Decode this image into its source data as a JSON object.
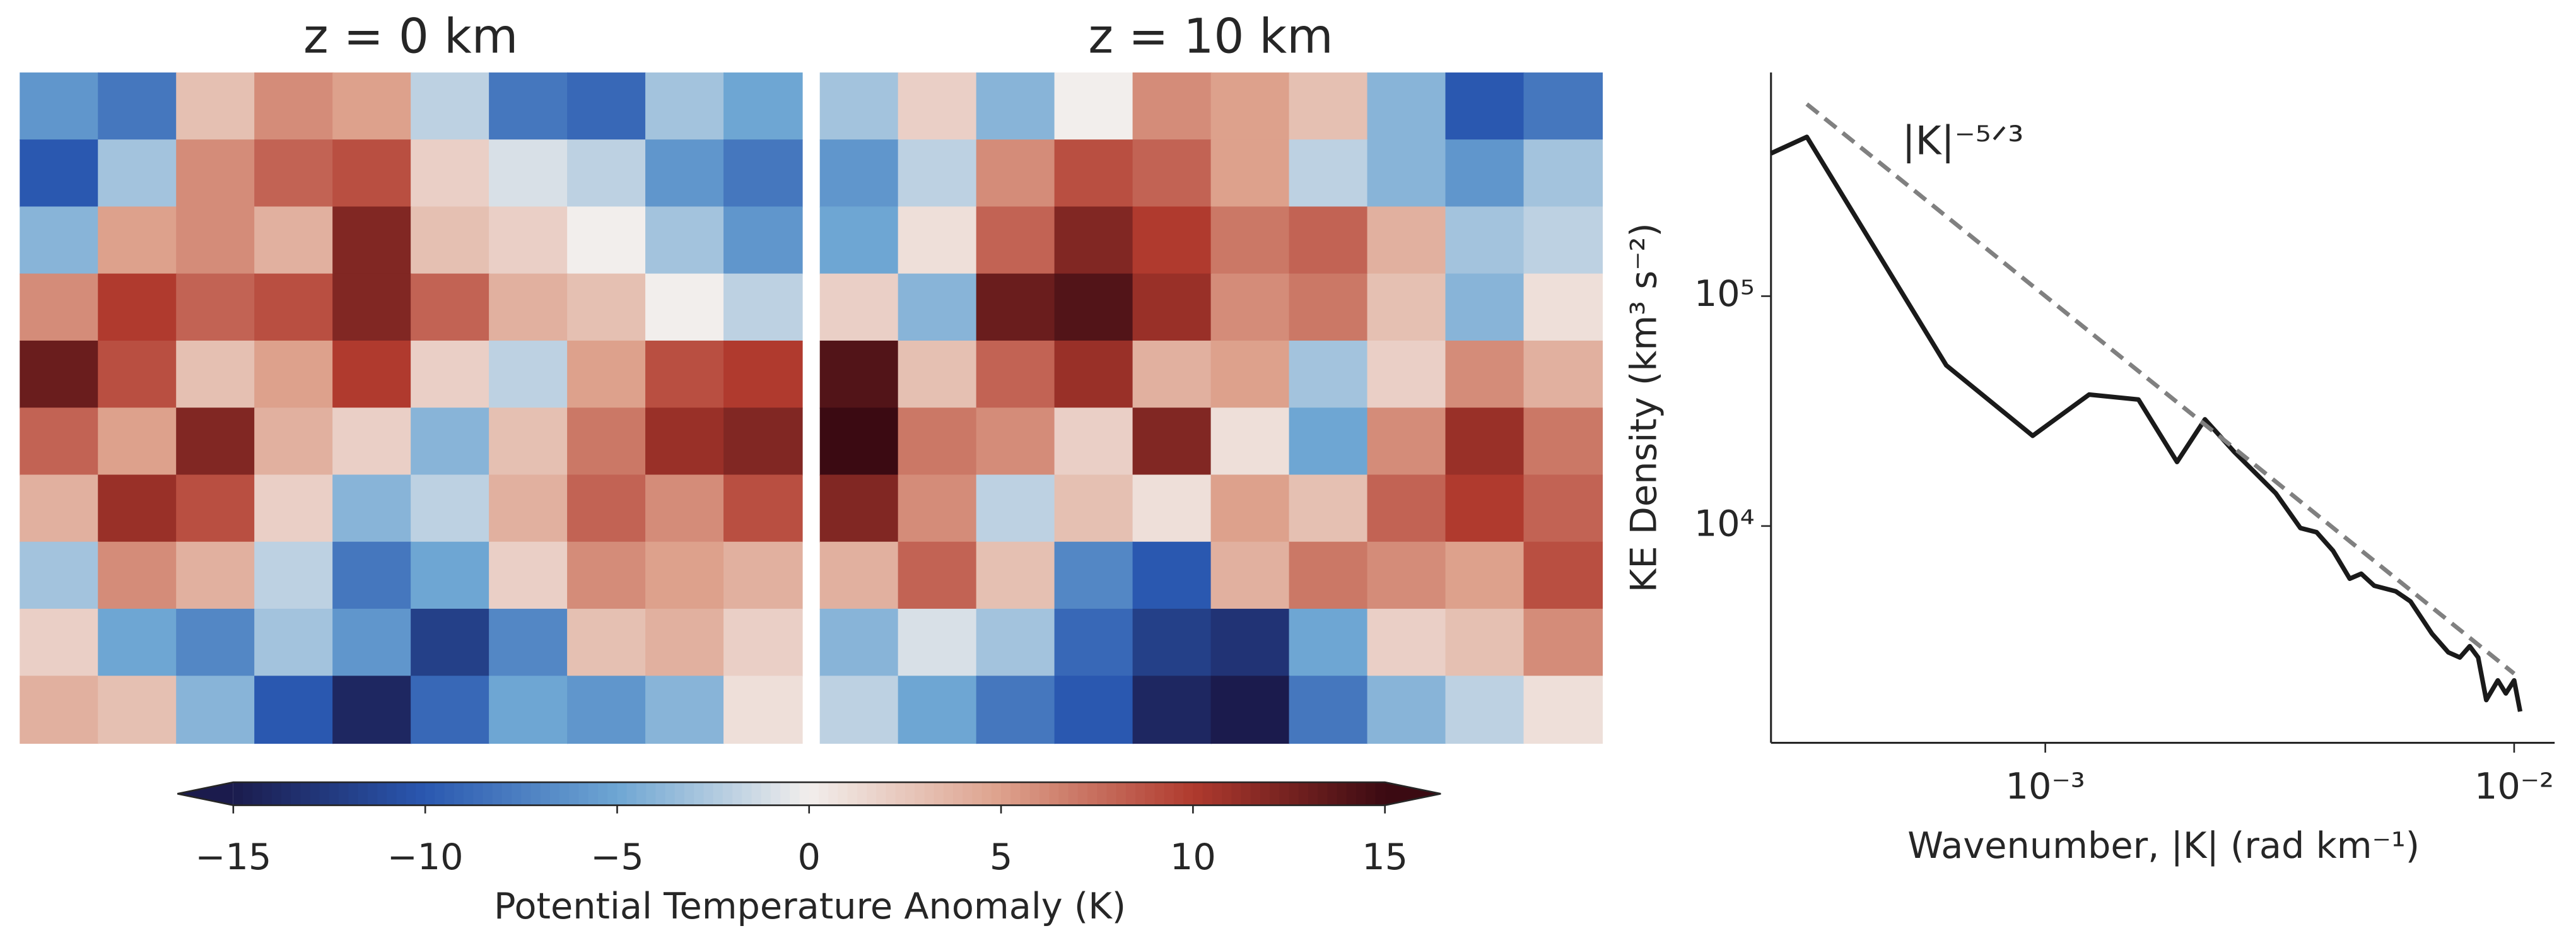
{
  "chart_data": [
    {
      "type": "heatmap",
      "title": "z = 0 km",
      "z": [
        [
          -6,
          -8,
          3,
          6,
          5,
          -2,
          -8,
          -9,
          -3,
          -5
        ],
        [
          -10,
          -3,
          6,
          8,
          9,
          2,
          -1,
          -2,
          -6,
          -8
        ],
        [
          -4,
          5,
          6,
          4,
          12,
          3,
          2,
          0,
          -3,
          -6
        ],
        [
          6,
          10,
          8,
          9,
          12,
          8,
          4,
          3,
          0,
          -2
        ],
        [
          13,
          9,
          3,
          5,
          10,
          2,
          -2,
          5,
          9,
          10
        ],
        [
          8,
          5,
          12,
          4,
          2,
          -4,
          3,
          7,
          11,
          12
        ],
        [
          4,
          11,
          9,
          2,
          -4,
          -2,
          4,
          8,
          6,
          9
        ],
        [
          -3,
          6,
          4,
          -2,
          -8,
          -5,
          2,
          6,
          5,
          4
        ],
        [
          2,
          -5,
          -7,
          -3,
          -6,
          -12,
          -7,
          3,
          4,
          2
        ],
        [
          4,
          3,
          -4,
          -10,
          -14,
          -9,
          -5,
          -6,
          -4,
          1
        ]
      ]
    },
    {
      "type": "heatmap",
      "title": "z = 10 km",
      "z": [
        [
          -3,
          2,
          -4,
          0,
          6,
          5,
          3,
          -4,
          -10,
          -8
        ],
        [
          -6,
          -2,
          6,
          9,
          8,
          5,
          -2,
          -4,
          -6,
          -3
        ],
        [
          -5,
          1,
          8,
          12,
          10,
          7,
          8,
          4,
          -3,
          -2
        ],
        [
          2,
          -4,
          13,
          14,
          11,
          6,
          7,
          3,
          -4,
          1
        ],
        [
          14,
          3,
          8,
          11,
          4,
          5,
          -3,
          2,
          6,
          4
        ],
        [
          15,
          7,
          6,
          2,
          12,
          1,
          -5,
          6,
          11,
          7
        ],
        [
          12,
          6,
          -2,
          3,
          1,
          5,
          3,
          8,
          10,
          8
        ],
        [
          4,
          8,
          3,
          -7,
          -10,
          4,
          7,
          6,
          5,
          9
        ],
        [
          -4,
          -1,
          -3,
          -9,
          -12,
          -13,
          -5,
          2,
          3,
          6
        ],
        [
          -2,
          -5,
          -8,
          -10,
          -14,
          -15,
          -8,
          -4,
          -2,
          1
        ]
      ]
    },
    {
      "type": "line",
      "log_x": true,
      "log_y": true,
      "x_label": "Wavenumber, |K| (rad km⁻¹)",
      "y_label": "KE Density (km³ s⁻²)",
      "xlim": [
        0.00026,
        0.0122
      ],
      "ylim": [
        1140,
        940000
      ],
      "xticks": [
        {
          "value": 0.001,
          "label": "10⁻³"
        },
        {
          "value": 0.01,
          "label": "10⁻²"
        }
      ],
      "yticks": [
        {
          "value": 10000,
          "label": "10⁴"
        },
        {
          "value": 100000,
          "label": "10⁵"
        }
      ],
      "series": [
        {
          "color": "#1a1a1a",
          "x": [
            0.00026,
            0.00031,
            0.000615,
            0.00094,
            0.00124,
            0.00158,
            0.00191,
            0.00219,
            0.00253,
            0.0031,
            0.0035,
            0.00379,
            0.00411,
            0.00446,
            0.00472,
            0.00503,
            0.00559,
            0.00601,
            0.00668,
            0.00724,
            0.00766,
            0.00804,
            0.00838,
            0.00872,
            0.00923,
            0.0096,
            0.01,
            0.0103
          ],
          "values": [
            418000,
            493000,
            50000,
            24700,
            37300,
            35500,
            19000,
            29100,
            21000,
            13900,
            9800,
            9400,
            7800,
            5900,
            6200,
            5500,
            5200,
            4700,
            3400,
            2820,
            2680,
            3000,
            2680,
            1750,
            2130,
            1870,
            2130,
            1560
          ]
        },
        {
          "name": "|K|⁻⁵ᐟ³",
          "color": "#808080",
          "dashed": true,
          "x": [
            0.00031,
            0.01
          ],
          "values": [
            685000,
            2280
          ]
        }
      ]
    }
  ],
  "colorbar": {
    "label": "Potential Temperature Anomaly (K)",
    "clim": [
      -15,
      15
    ],
    "colors": [
      "#1b1b4d",
      "#2a58b0",
      "#6ea6d3",
      "#f2eeec",
      "#dda18c",
      "#b03a2e",
      "#3b0a12"
    ],
    "ticks": [
      {
        "value": -15,
        "label": "−15"
      },
      {
        "value": -10,
        "label": "−10"
      },
      {
        "value": -5,
        "label": "−5"
      },
      0,
      5,
      10,
      15
    ]
  }
}
